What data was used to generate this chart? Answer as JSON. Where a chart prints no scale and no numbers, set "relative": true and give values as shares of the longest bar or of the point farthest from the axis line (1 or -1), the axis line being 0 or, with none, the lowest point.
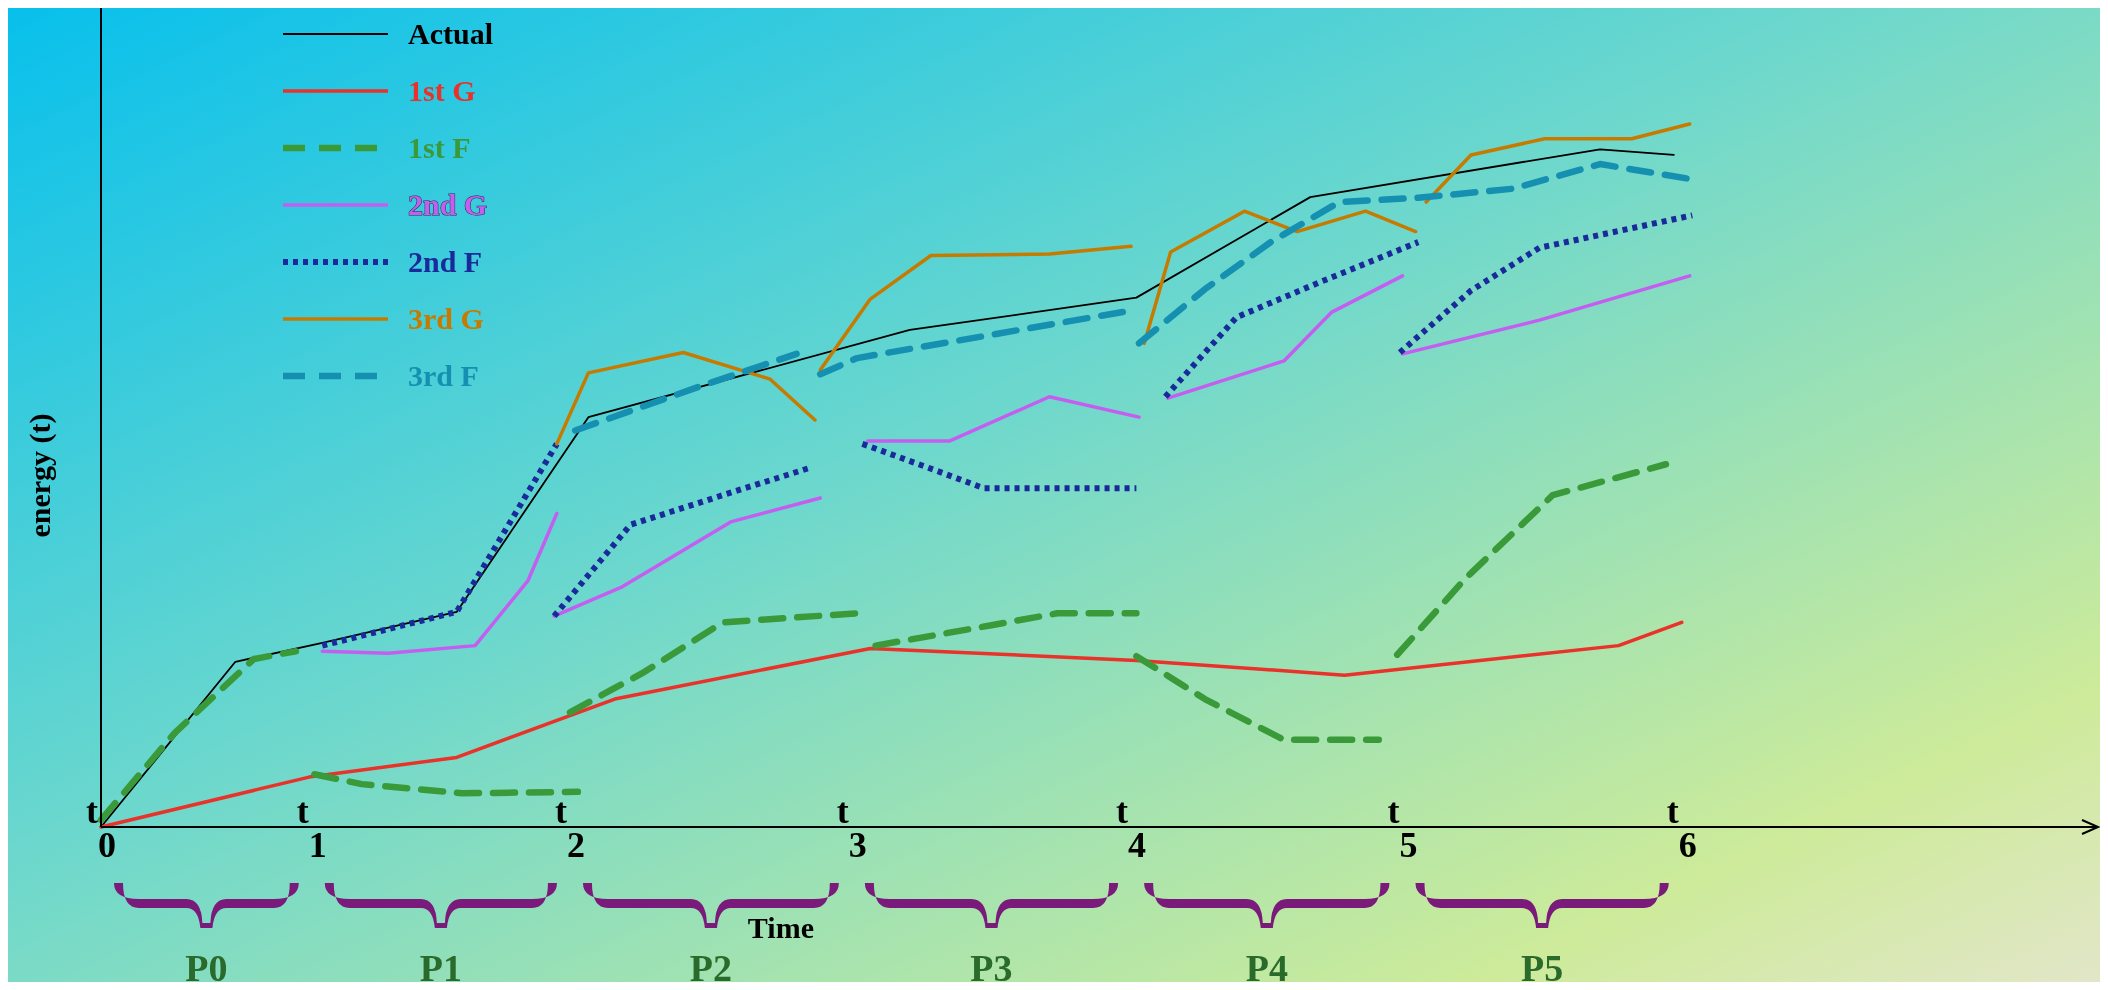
{
  "chart_data": {
    "type": "line",
    "relative": true,
    "xlabel": "Time",
    "ylabel": "energy (t)",
    "legend": "top left",
    "xlim": [
      0,
      7.58
    ],
    "xticks": [
      {
        "value": 0,
        "label": "t$_{0}$"
      },
      {
        "value": 0.8,
        "label": "t$_{1}$"
      },
      {
        "value": 1.78,
        "label": "t$_{2}$"
      },
      {
        "value": 2.85,
        "label": "t$_{3}$"
      },
      {
        "value": 3.91,
        "label": "t$_{4}$"
      },
      {
        "value": 4.94,
        "label": "t$_{5}$"
      },
      {
        "value": 6.0,
        "label": "t$_{6}$"
      }
    ],
    "annotations": [
      "P0",
      "P1",
      "P2",
      "P3",
      "P4",
      "P5"
    ],
    "series": [
      {
        "name": "Actual",
        "color": "#000000",
        "line_style": "solid",
        "x": [
          0,
          0.51,
          0.84,
          1.35,
          1.85,
          3.07,
          3.93,
          4.59,
          5.69,
          5.97
        ],
        "values": [
          0,
          0.235,
          0.262,
          0.306,
          0.583,
          0.707,
          0.753,
          0.896,
          0.964,
          0.956
        ]
      },
      {
        "name": "1st G",
        "color": "#e8322a",
        "line_style": "solid",
        "x": [
          0,
          0.79,
          1.35,
          1.95,
          2.92,
          3.93,
          4.72,
          5.76,
          6.0
        ],
        "values": [
          0,
          0.071,
          0.099,
          0.182,
          0.254,
          0.237,
          0.216,
          0.258,
          0.291
        ]
      },
      {
        "name": "1st F",
        "color": "#3a9a3a",
        "line_style": "dashed",
        "x": [
          0,
          0.28,
          0.58,
          0.74,
          null,
          0.81,
          0.99,
          1.37,
          1.81,
          null,
          1.78,
          2.06,
          2.36,
          2.87,
          null,
          2.94,
          3.38,
          3.63,
          3.93,
          null,
          3.93,
          4.19,
          4.49,
          4.85,
          null,
          4.92,
          5.18,
          5.51,
          5.94
        ],
        "values": [
          0.01,
          0.134,
          0.239,
          0.25,
          null,
          0.075,
          0.061,
          0.048,
          0.05,
          null,
          0.163,
          0.22,
          0.291,
          0.304,
          null,
          0.258,
          0.287,
          0.304,
          0.304,
          null,
          0.243,
          0.182,
          0.124,
          0.124,
          null,
          0.245,
          0.354,
          0.472,
          0.516
        ]
      },
      {
        "name": "2nd G",
        "color": "#c45ef0",
        "line_style": "solid",
        "x": [
          0.84,
          1.09,
          1.42,
          1.62,
          1.73,
          null,
          1.72,
          1.98,
          2.39,
          2.73,
          null,
          2.91,
          3.22,
          3.6,
          3.94,
          null,
          4.05,
          4.49,
          4.67,
          4.94,
          null,
          4.94,
          5.46,
          6.03
        ],
        "values": [
          0.25,
          0.247,
          0.258,
          0.35,
          0.446,
          null,
          0.3,
          0.342,
          0.434,
          0.468,
          null,
          0.549,
          0.549,
          0.612,
          0.583,
          null,
          0.61,
          0.663,
          0.732,
          0.784,
          null,
          0.673,
          0.721,
          0.784
        ]
      },
      {
        "name": "2nd F",
        "color": "#1a2a9a",
        "line_style": "dotted",
        "x": [
          0.84,
          1.35,
          1.73,
          null,
          1.72,
          2.01,
          2.36,
          2.7,
          null,
          2.89,
          3.17,
          3.35,
          3.93,
          null,
          4.04,
          4.31,
          4.62,
          5.0,
          null,
          4.93,
          5.2,
          5.46,
          6.04
        ],
        "values": [
          0.258,
          0.306,
          0.545,
          null,
          0.3,
          0.43,
          0.472,
          0.512,
          null,
          0.545,
          0.507,
          0.482,
          0.482,
          null,
          0.612,
          0.725,
          0.774,
          0.832,
          null,
          0.675,
          0.763,
          0.824,
          0.87
        ]
      },
      {
        "name": "3rd G",
        "color": "#c77a00",
        "line_style": "solid",
        "x": [
          1.73,
          1.85,
          2.21,
          2.54,
          2.71,
          null,
          2.73,
          2.92,
          3.15,
          3.6,
          3.91,
          null,
          3.96,
          4.06,
          4.34,
          4.54,
          4.8,
          4.99,
          null,
          5.03,
          5.2,
          5.48,
          5.81,
          6.03
        ],
        "values": [
          0.545,
          0.646,
          0.675,
          0.637,
          0.579,
          null,
          0.65,
          0.751,
          0.813,
          0.815,
          0.826,
          null,
          0.688,
          0.818,
          0.876,
          0.847,
          0.876,
          0.847,
          null,
          0.889,
          0.956,
          0.979,
          0.979,
          1.0
        ]
      },
      {
        "name": "3rd F",
        "color": "#1590b0",
        "line_style": "dashed",
        "x": [
          1.8,
          2.26,
          2.64,
          null,
          2.73,
          2.87,
          3.93,
          null,
          3.94,
          4.19,
          4.44,
          4.7,
          5.0,
          5.36,
          5.69,
          6.06
        ],
        "values": [
          0.564,
          0.625,
          0.673,
          null,
          0.644,
          0.667,
          0.736,
          null,
          0.688,
          0.765,
          0.832,
          0.889,
          0.895,
          0.908,
          0.943,
          0.92
        ]
      }
    ]
  }
}
